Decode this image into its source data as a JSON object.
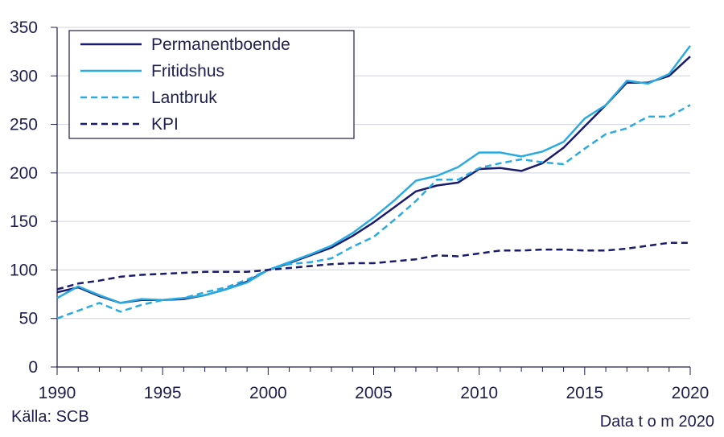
{
  "chart_data": {
    "type": "line",
    "x": [
      1990,
      1991,
      1992,
      1993,
      1994,
      1995,
      1996,
      1997,
      1998,
      1999,
      2000,
      2001,
      2002,
      2003,
      2004,
      2005,
      2006,
      2007,
      2008,
      2009,
      2010,
      2011,
      2012,
      2013,
      2014,
      2015,
      2016,
      2017,
      2018,
      2019,
      2020
    ],
    "xlim": [
      1990,
      2020
    ],
    "ylim": [
      0,
      350
    ],
    "xticks": [
      "1990",
      "1995",
      "2000",
      "2005",
      "2010",
      "2015",
      "2020"
    ],
    "yticks": [
      "0",
      "50",
      "100",
      "150",
      "200",
      "250",
      "300",
      "350"
    ],
    "grid": "horizontal",
    "legend_position": "top-left",
    "series": [
      {
        "name": "Permanentboende",
        "color": "#1a1a6e",
        "dash": "solid",
        "values": [
          77,
          82,
          73,
          66,
          69,
          69,
          70,
          74,
          80,
          88,
          100,
          107,
          115,
          123,
          135,
          149,
          165,
          181,
          187,
          190,
          204,
          205,
          202,
          210,
          226,
          248,
          270,
          293,
          293,
          300,
          320
        ]
      },
      {
        "name": "Fritidshus",
        "color": "#29abe2",
        "dash": "solid",
        "values": [
          71,
          83,
          74,
          66,
          70,
          69,
          71,
          74,
          80,
          87,
          100,
          108,
          116,
          125,
          138,
          154,
          172,
          192,
          197,
          206,
          221,
          221,
          217,
          222,
          232,
          256,
          270,
          295,
          292,
          302,
          331
        ]
      },
      {
        "name": "Lantbruk",
        "color": "#29abe2",
        "dash": "dashed",
        "values": [
          50,
          58,
          66,
          57,
          64,
          69,
          71,
          77,
          82,
          90,
          100,
          106,
          108,
          112,
          124,
          134,
          152,
          171,
          193,
          193,
          205,
          210,
          214,
          211,
          209,
          225,
          240,
          246,
          258,
          258,
          270
        ]
      },
      {
        "name": "KPI",
        "color": "#1a1a6e",
        "dash": "dashed",
        "values": [
          80,
          86,
          89,
          93,
          95,
          96,
          97,
          98,
          98,
          98,
          100,
          102,
          104,
          106,
          107,
          107,
          109,
          111,
          115,
          114,
          117,
          120,
          120,
          121,
          121,
          120,
          120,
          122,
          125,
          128,
          128
        ]
      }
    ]
  },
  "source_note": "Källa: SCB",
  "date_note": "Data t o m 2020"
}
